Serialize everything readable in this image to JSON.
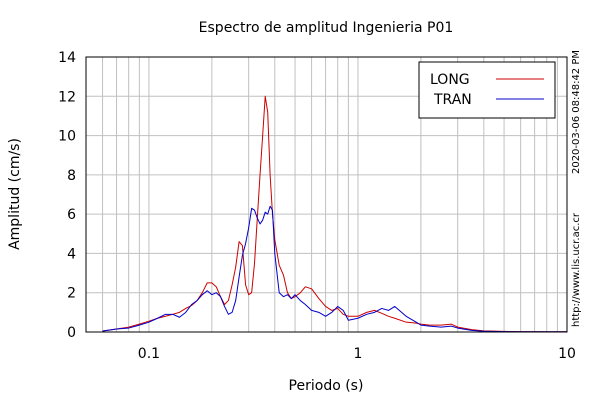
{
  "chart_data": {
    "type": "line",
    "title": "Espectro de amplitud Ingenieria P01",
    "xlabel": "Periodo (s)",
    "ylabel": "Amplitud (cm/s)",
    "x_scale": "log",
    "xlim": [
      0.05,
      10
    ],
    "ylim": [
      0,
      14
    ],
    "x_ticks": [
      {
        "value": 0.1,
        "label": "0.1"
      },
      {
        "value": 1,
        "label": "1"
      },
      {
        "value": 10,
        "label": "10"
      }
    ],
    "y_ticks": [
      {
        "value": 0,
        "label": "0"
      },
      {
        "value": 2,
        "label": "2"
      },
      {
        "value": 4,
        "label": "4"
      },
      {
        "value": 6,
        "label": "6"
      },
      {
        "value": 8,
        "label": "8"
      },
      {
        "value": 10,
        "label": "10"
      },
      {
        "value": 12,
        "label": "12"
      },
      {
        "value": 14,
        "label": "14"
      }
    ],
    "grid": true,
    "legend_position": "top-right",
    "series": [
      {
        "name": "LONG",
        "color": "#cc0000",
        "x": [
          0.06,
          0.065,
          0.07,
          0.08,
          0.09,
          0.1,
          0.11,
          0.12,
          0.13,
          0.14,
          0.15,
          0.16,
          0.17,
          0.18,
          0.19,
          0.2,
          0.21,
          0.22,
          0.23,
          0.24,
          0.25,
          0.26,
          0.27,
          0.28,
          0.29,
          0.3,
          0.31,
          0.32,
          0.33,
          0.34,
          0.35,
          0.36,
          0.37,
          0.38,
          0.39,
          0.4,
          0.42,
          0.44,
          0.46,
          0.48,
          0.5,
          0.53,
          0.56,
          0.6,
          0.65,
          0.7,
          0.75,
          0.8,
          0.85,
          0.9,
          1.0,
          1.1,
          1.2,
          1.3,
          1.4,
          1.5,
          1.7,
          1.9,
          2.0,
          2.2,
          2.5,
          2.8,
          3.0,
          3.5,
          4.0,
          5.0,
          6.0,
          8.0,
          10.0
        ],
        "y": [
          0.05,
          0.1,
          0.15,
          0.25,
          0.4,
          0.55,
          0.7,
          0.8,
          0.9,
          1.0,
          1.2,
          1.35,
          1.6,
          2.0,
          2.5,
          2.5,
          2.3,
          1.8,
          1.4,
          1.6,
          2.4,
          3.3,
          4.6,
          4.4,
          2.4,
          1.9,
          2.0,
          3.5,
          5.8,
          8.0,
          10.0,
          12.0,
          11.2,
          8.0,
          6.0,
          4.7,
          3.4,
          2.9,
          2.0,
          1.7,
          1.8,
          2.0,
          2.3,
          2.2,
          1.7,
          1.3,
          1.1,
          1.2,
          0.9,
          0.8,
          0.8,
          1.0,
          1.1,
          0.95,
          0.8,
          0.7,
          0.5,
          0.45,
          0.4,
          0.35,
          0.35,
          0.4,
          0.25,
          0.12,
          0.06,
          0.03,
          0.02,
          0.01,
          0.01
        ]
      },
      {
        "name": "TRAN",
        "color": "#0000cc",
        "x": [
          0.06,
          0.065,
          0.07,
          0.08,
          0.09,
          0.1,
          0.11,
          0.12,
          0.13,
          0.14,
          0.15,
          0.16,
          0.17,
          0.18,
          0.19,
          0.2,
          0.21,
          0.22,
          0.23,
          0.24,
          0.25,
          0.26,
          0.27,
          0.28,
          0.29,
          0.3,
          0.31,
          0.32,
          0.33,
          0.34,
          0.35,
          0.36,
          0.37,
          0.38,
          0.39,
          0.4,
          0.42,
          0.44,
          0.46,
          0.48,
          0.5,
          0.53,
          0.56,
          0.6,
          0.65,
          0.7,
          0.75,
          0.8,
          0.85,
          0.9,
          1.0,
          1.1,
          1.2,
          1.3,
          1.4,
          1.5,
          1.7,
          1.9,
          2.0,
          2.2,
          2.5,
          2.8,
          3.0,
          3.5,
          4.0,
          5.0,
          6.0,
          8.0,
          10.0
        ],
        "y": [
          0.05,
          0.1,
          0.15,
          0.2,
          0.35,
          0.5,
          0.7,
          0.9,
          0.9,
          0.75,
          1.0,
          1.4,
          1.6,
          1.9,
          2.1,
          1.9,
          2.0,
          1.8,
          1.3,
          0.9,
          1.0,
          1.6,
          2.8,
          3.9,
          4.5,
          5.3,
          6.3,
          6.2,
          5.8,
          5.5,
          5.7,
          6.1,
          6.0,
          6.4,
          6.2,
          4.0,
          2.0,
          1.8,
          1.9,
          1.7,
          1.9,
          1.6,
          1.4,
          1.1,
          1.0,
          0.8,
          1.0,
          1.3,
          1.1,
          0.6,
          0.7,
          0.9,
          1.0,
          1.2,
          1.1,
          1.3,
          0.8,
          0.5,
          0.35,
          0.3,
          0.25,
          0.3,
          0.2,
          0.08,
          0.04,
          0.02,
          0.01,
          0.01,
          0.01
        ]
      }
    ]
  },
  "side_labels": {
    "timestamp": "2020-03-06 08:48:42 PM",
    "website": "http://www.lis.ucr.ac.cr"
  }
}
